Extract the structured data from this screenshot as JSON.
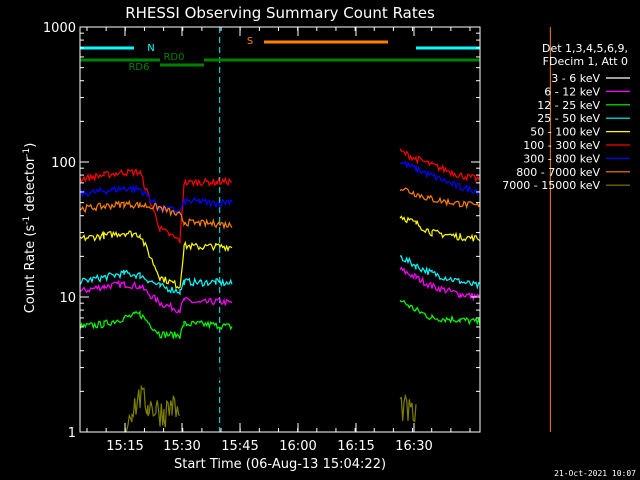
{
  "chart_data": {
    "type": "line",
    "title": "RHESSI Observing Summary Count Rates",
    "xlabel": "Start Time (06-Aug-13 15:04:22)",
    "ylabel": "Count Rate (s⁻¹ detector⁻¹)",
    "ylabel_parts": [
      "Count Rate (s",
      "-1",
      " detector",
      "-1",
      ")"
    ],
    "y_scale": "log",
    "ylim": [
      1,
      1000
    ],
    "xlim_minutes": [
      -0.4,
      39.4
    ],
    "x_ticks": [
      {
        "label": "15:15",
        "min": 10.6
      },
      {
        "label": "15:30",
        "min": 25.6
      },
      {
        "label": "15:45",
        "min": 40.6
      },
      {
        "label": "16:00",
        "min": 55.6
      },
      {
        "label": "16:15",
        "min": 70.6
      },
      {
        "label": "16:30",
        "min": 85.6
      }
    ],
    "y_ticks": [
      {
        "label": "1",
        "value": 1
      },
      {
        "label": "10",
        "value": 10
      },
      {
        "label": "100",
        "value": 100
      },
      {
        "label": "1000",
        "value": 1000
      }
    ],
    "legend": {
      "position": "top-right",
      "header": [
        "Det 1,3,4,5,6,9,",
        "FDecim 1, Att 0"
      ]
    },
    "series": [
      {
        "name": "3 - 6 keV",
        "color": "#000000",
        "segments": [
          [
            [
              0,
              2.4
            ],
            [
              6,
              2.5
            ],
            [
              11,
              3.2
            ],
            [
              15,
              3.6
            ],
            [
              20,
              3.0
            ],
            [
              25,
              2.6
            ],
            [
              26,
              2.7
            ],
            [
              30,
              2.6
            ],
            [
              34,
              2.8
            ],
            [
              38,
              2.5
            ]
          ],
          [
            [
              84,
              2.5
            ],
            [
              88,
              2.4
            ],
            [
              95,
              2.4
            ],
            [
              100,
              2.3
            ]
          ]
        ]
      },
      {
        "name": "6 - 12 keV",
        "color": "#ff00ff",
        "segments": [
          [
            [
              0,
              11
            ],
            [
              6,
              12
            ],
            [
              11,
              12.5
            ],
            [
              15,
              12
            ],
            [
              20,
              9
            ],
            [
              25,
              8
            ],
            [
              26,
              9.5
            ],
            [
              30,
              9
            ],
            [
              34,
              9.3
            ],
            [
              38,
              9
            ]
          ],
          [
            [
              80,
              16
            ],
            [
              84,
              14
            ],
            [
              88,
              12
            ],
            [
              95,
              10.5
            ],
            [
              100,
              10
            ]
          ]
        ]
      },
      {
        "name": "12 - 25 keV",
        "color": "#00ff00",
        "segments": [
          [
            [
              0,
              6
            ],
            [
              6,
              6.3
            ],
            [
              11,
              7
            ],
            [
              15,
              7.5
            ],
            [
              20,
              5.3
            ],
            [
              25,
              5.2
            ],
            [
              26,
              6.3
            ],
            [
              30,
              6.3
            ],
            [
              34,
              6.2
            ],
            [
              38,
              6
            ]
          ],
          [
            [
              80,
              9.5
            ],
            [
              84,
              8
            ],
            [
              88,
              7
            ],
            [
              95,
              6.8
            ],
            [
              100,
              6.5
            ]
          ]
        ]
      },
      {
        "name": "25 - 50 keV",
        "color": "#00ffff",
        "segments": [
          [
            [
              0,
              13
            ],
            [
              6,
              14
            ],
            [
              11,
              15
            ],
            [
              15,
              14.5
            ],
            [
              20,
              12
            ],
            [
              25,
              11
            ],
            [
              26,
              13
            ],
            [
              30,
              12.8
            ],
            [
              34,
              12.9
            ],
            [
              38,
              12.5
            ]
          ],
          [
            [
              80,
              20
            ],
            [
              84,
              17
            ],
            [
              88,
              15
            ],
            [
              95,
              13
            ],
            [
              100,
              12
            ]
          ]
        ]
      },
      {
        "name": "50 - 100 keV",
        "color": "#ffff00",
        "segments": [
          [
            [
              0,
              27
            ],
            [
              6,
              28.5
            ],
            [
              11,
              30
            ],
            [
              15,
              29
            ],
            [
              20,
              14
            ],
            [
              25,
              12
            ],
            [
              26,
              24
            ],
            [
              30,
              23.5
            ],
            [
              34,
              23.8
            ],
            [
              38,
              23.5
            ]
          ],
          [
            [
              80,
              40
            ],
            [
              84,
              35
            ],
            [
              88,
              30
            ],
            [
              95,
              28
            ],
            [
              100,
              27
            ]
          ]
        ]
      },
      {
        "name": "100 - 300 keV",
        "color": "#ff0000",
        "segments": [
          [
            [
              0,
              75
            ],
            [
              6,
              80
            ],
            [
              11,
              84
            ],
            [
              15,
              84
            ],
            [
              20,
              32
            ],
            [
              25,
              26
            ],
            [
              26,
              70
            ],
            [
              30,
              71
            ],
            [
              34,
              71
            ],
            [
              38,
              72
            ]
          ],
          [
            [
              80,
              120
            ],
            [
              84,
              106
            ],
            [
              88,
              95
            ],
            [
              95,
              80
            ],
            [
              100,
              74
            ]
          ]
        ]
      },
      {
        "name": "300 - 800 keV",
        "color": "#0000ff",
        "segments": [
          [
            [
              0,
              58
            ],
            [
              6,
              61
            ],
            [
              11,
              64
            ],
            [
              15,
              63
            ],
            [
              20,
              46
            ],
            [
              25,
              43
            ],
            [
              26,
              51
            ],
            [
              30,
              51
            ],
            [
              34,
              49
            ],
            [
              38,
              52
            ]
          ],
          [
            [
              80,
              100
            ],
            [
              84,
              89
            ],
            [
              88,
              79
            ],
            [
              95,
              65
            ],
            [
              100,
              61
            ]
          ]
        ]
      },
      {
        "name": "800 - 7000 keV",
        "color": "#ff8000",
        "segments": [
          [
            [
              0,
              45
            ],
            [
              6,
              47
            ],
            [
              11,
              49
            ],
            [
              15,
              48
            ],
            [
              20,
              46
            ],
            [
              25,
              40
            ],
            [
              26,
              36
            ],
            [
              30,
              35
            ],
            [
              34,
              35
            ],
            [
              38,
              34
            ]
          ],
          [
            [
              80,
              65
            ],
            [
              84,
              58
            ],
            [
              88,
              53
            ],
            [
              95,
              49
            ],
            [
              100,
              47
            ]
          ]
        ]
      },
      {
        "name": "7000 - 15000 keV",
        "color": "#808000",
        "segments": [
          [
            [
              11,
              1.0
            ],
            [
              13,
              1.5
            ],
            [
              15,
              1.8
            ],
            [
              17,
              1.6
            ],
            [
              19,
              1.5
            ],
            [
              21,
              1.4
            ],
            [
              23,
              1.6
            ],
            [
              25,
              1.3
            ]
          ],
          [
            [
              80,
              1.6
            ],
            [
              84,
              1.3
            ]
          ]
        ]
      }
    ],
    "annotations": [
      {
        "label": "N",
        "color": "#00ffff",
        "type": "flag",
        "segments": [
          [
            [
              0,
              39.4
            ],
            [
              13.5,
              39.4
            ]
          ],
          [
            [
              84,
              39.4
            ],
            [
              100,
              39.4
            ]
          ]
        ]
      },
      {
        "label": "S",
        "color": "#ff8000",
        "type": "flag",
        "segments": [
          [
            [
              46,
              40
            ],
            [
              77,
              40
            ]
          ]
        ]
      },
      {
        "label": "RD0",
        "color": "#008000",
        "type": "flag",
        "segments": [
          [
            [
              0,
              39.7
            ],
            [
              20,
              39.7
            ]
          ],
          [
            [
              31,
              39.7
            ],
            [
              100,
              39.7
            ]
          ]
        ]
      },
      {
        "label": "RD6",
        "color": "#008000",
        "type": "flag",
        "segments": [
          [
            [
              20,
              39.2
            ],
            [
              31,
              39.2
            ]
          ]
        ]
      }
    ],
    "vlines": [
      {
        "color": "#00ffff",
        "style": "solid",
        "min": -0.4
      },
      {
        "color": "#00ffff",
        "style": "dashed",
        "min": 13.5
      },
      {
        "color": "#ff8000",
        "style": "solid",
        "min": 46.4
      },
      {
        "color": "#ff8000",
        "style": "dashed",
        "min": 77.5
      },
      {
        "color": "#00ffff",
        "style": "solid",
        "min": 83.8
      },
      {
        "color": "#00ffff",
        "style": "dashed",
        "min": 99.3
      }
    ]
  },
  "footer": {
    "timestamp": "21-Oct-2021 10:07"
  }
}
